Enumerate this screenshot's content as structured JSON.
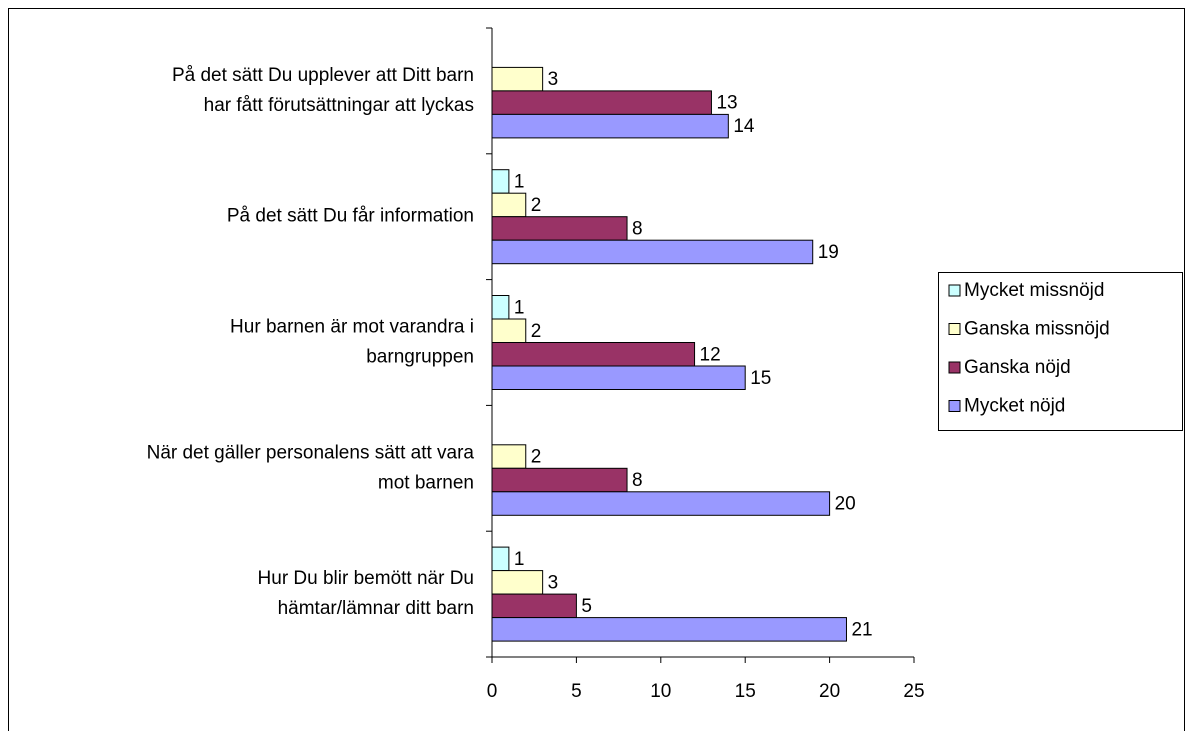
{
  "chart_data": {
    "type": "hbar",
    "categories": [
      [
        "På det sätt Du upplever att Ditt barn",
        "har fått förutsättningar att lyckas"
      ],
      [
        "På det sätt Du får information"
      ],
      [
        "Hur barnen är mot varandra  i",
        "barngruppen"
      ],
      [
        "När det gäller personalens  sätt att vara",
        "mot barnen"
      ],
      [
        "Hur Du blir bemött när Du",
        "hämtar/lämnar ditt barn"
      ]
    ],
    "series": [
      {
        "name": "Mycket missnöjd",
        "color": "#ccffff",
        "values": [
          null,
          1,
          1,
          null,
          1
        ]
      },
      {
        "name": "Ganska missnöjd",
        "color": "#ffffcc",
        "values": [
          3,
          2,
          2,
          2,
          3
        ]
      },
      {
        "name": "Ganska nöjd",
        "color": "#993366",
        "values": [
          13,
          8,
          12,
          8,
          5
        ]
      },
      {
        "name": "Mycket nöjd",
        "color": "#9999ff",
        "values": [
          14,
          19,
          15,
          20,
          21
        ]
      }
    ],
    "xlim": [
      0,
      25
    ],
    "xticks": [
      0,
      5,
      10,
      15,
      20,
      25
    ],
    "legend": "right"
  }
}
